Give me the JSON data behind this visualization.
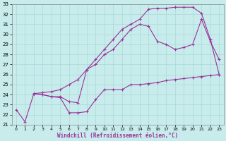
{
  "xlabel": "Windchill (Refroidissement éolien,°C)",
  "bg_color": "#c8ecec",
  "grid_color": "#a8d8d8",
  "line_color": "#993399",
  "xlim": [
    -0.5,
    23.5
  ],
  "ylim": [
    21,
    33
  ],
  "xticks": [
    0,
    1,
    2,
    3,
    4,
    5,
    6,
    7,
    8,
    9,
    10,
    11,
    12,
    13,
    14,
    15,
    16,
    17,
    18,
    19,
    20,
    21,
    22,
    23
  ],
  "yticks": [
    21,
    22,
    23,
    24,
    25,
    26,
    27,
    28,
    29,
    30,
    31,
    32,
    33
  ],
  "line1_x": [
    0,
    1,
    2,
    3,
    4,
    5,
    6,
    7,
    8,
    9,
    10,
    11,
    12,
    13,
    14,
    15,
    16,
    17,
    18,
    19,
    20,
    21,
    22,
    23
  ],
  "line1_y": [
    22.5,
    21.3,
    24.1,
    24.0,
    23.8,
    23.7,
    22.2,
    22.2,
    22.3,
    23.5,
    24.5,
    24.5,
    24.5,
    25.0,
    25.0,
    25.1,
    25.2,
    25.4,
    25.5,
    25.6,
    25.7,
    25.8,
    25.9,
    26.0
  ],
  "line2_x": [
    2,
    3,
    4,
    5,
    6,
    7,
    8,
    9,
    10,
    11,
    12,
    13,
    14,
    15,
    16,
    17,
    18,
    19,
    20,
    21,
    22,
    23
  ],
  "line2_y": [
    24.1,
    24.0,
    23.8,
    23.8,
    23.3,
    23.2,
    26.5,
    27.0,
    28.0,
    28.5,
    29.5,
    30.5,
    31.0,
    30.8,
    29.3,
    29.0,
    28.5,
    28.7,
    29.0,
    31.5,
    29.3,
    27.5
  ],
  "line3_x": [
    2,
    3,
    4,
    5,
    6,
    7,
    8,
    9,
    10,
    11,
    12,
    13,
    14,
    15,
    16,
    17,
    18,
    19,
    20,
    21,
    22,
    23
  ],
  "line3_y": [
    24.1,
    24.2,
    24.3,
    24.5,
    25.0,
    25.5,
    26.5,
    27.5,
    28.5,
    29.5,
    30.5,
    31.0,
    31.5,
    32.5,
    32.6,
    32.6,
    32.7,
    32.7,
    32.7,
    32.1,
    29.5,
    26.0
  ]
}
